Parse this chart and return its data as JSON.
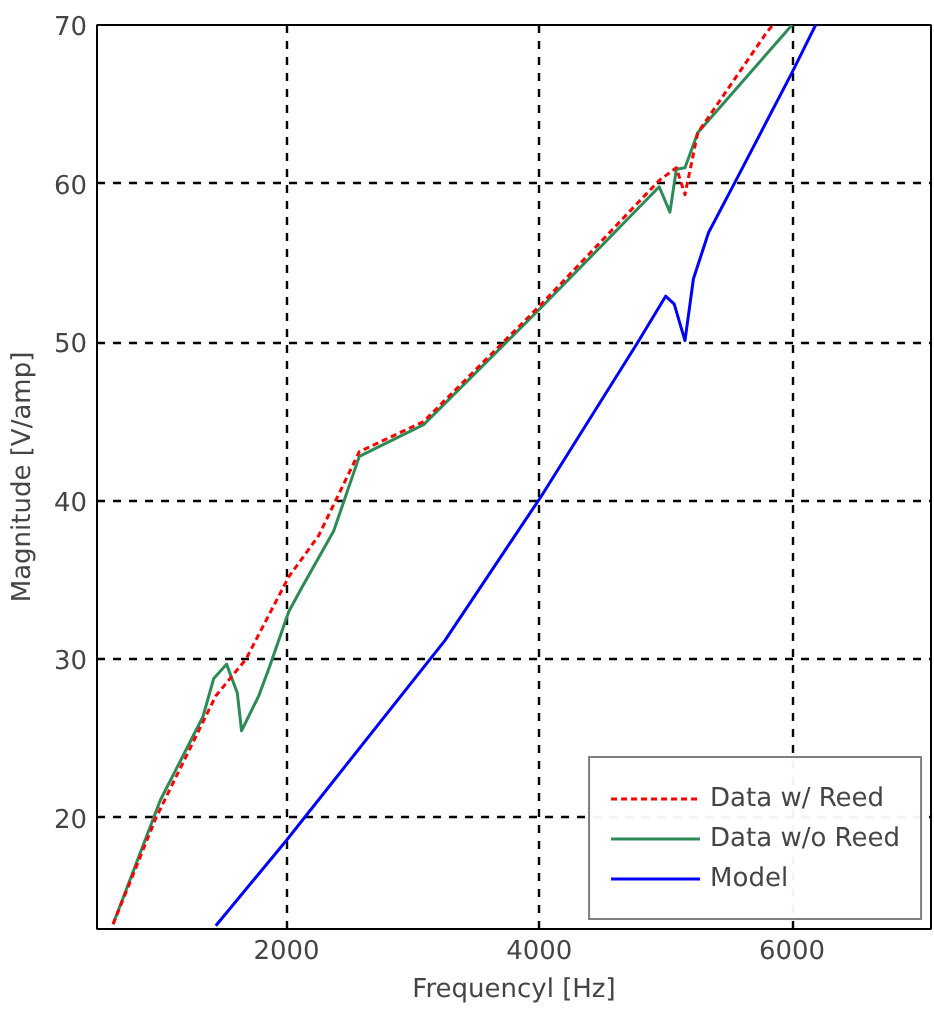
{
  "chart_data": {
    "type": "line",
    "xlabel": "Frequencyl [Hz]",
    "ylabel": "Magnitude [V/amp]",
    "xlim": [
      500,
      7100
    ],
    "ylim": [
      13,
      70
    ],
    "xticks": [
      2000,
      4000,
      6000
    ],
    "yticks": [
      20,
      30,
      40,
      50,
      60,
      70
    ],
    "grid": true,
    "legend": "bottom right",
    "marker": "none",
    "series": [
      {
        "name": "Data w/ Reed",
        "color": "#ff0000",
        "line_style": "dashed",
        "x": [
          627,
          966,
          1440,
          1678,
          2017,
          2254,
          2576,
          3085,
          4017,
          4949,
          5085,
          5153,
          5254,
          5797,
          5848
        ],
        "values": [
          13.3,
          20,
          27.7,
          30,
          35.2,
          37.8,
          43.1,
          45,
          52.4,
          60.2,
          61,
          59.3,
          63.2,
          69.5,
          70
        ]
      },
      {
        "name": "Data w/o Reed",
        "color": "#2e8b57",
        "line_style": "solid",
        "x": [
          627,
          1000,
          1339,
          1424,
          1525,
          1610,
          1644,
          1780,
          1864,
          2017,
          2119,
          2373,
          2576,
          3085,
          4017,
          4949,
          5034,
          5085,
          5153,
          5254,
          6000
        ],
        "values": [
          13.3,
          21.1,
          26.4,
          28.8,
          29.7,
          27.9,
          25.5,
          27.7,
          29.5,
          33,
          34.5,
          38.1,
          42.8,
          44.8,
          52.2,
          59.8,
          58.2,
          60.9,
          61,
          63.2,
          70
        ]
      },
      {
        "name": "Model",
        "color": "#0000ff",
        "line_style": "solid",
        "x": [
          1440,
          2000,
          3254,
          4017,
          4780,
          5000,
          5068,
          5153,
          5220,
          5339,
          5543,
          6000,
          6187
        ],
        "values": [
          13.2,
          18.6,
          31.2,
          40.3,
          50,
          52.9,
          52.4,
          50.1,
          54,
          56.9,
          60,
          67,
          70
        ]
      }
    ]
  }
}
